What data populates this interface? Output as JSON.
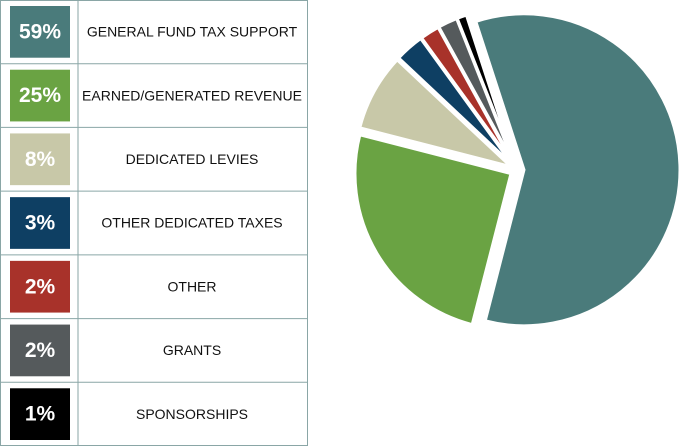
{
  "chart_data": {
    "type": "pie",
    "categories": [
      "GENERAL FUND TAX SUPPORT",
      "EARNED/GENERATED REVENUE",
      "DEDICATED LEVIES",
      "OTHER DEDICATED TAXES",
      "OTHER",
      "GRANTS",
      "SPONSORSHIPS"
    ],
    "values": [
      59,
      25,
      8,
      3,
      2,
      2,
      1
    ],
    "value_labels": [
      "59%",
      "25%",
      "8%",
      "3%",
      "2%",
      "2%",
      "1%"
    ],
    "colors": [
      "#4a7b7b",
      "#6aa343",
      "#c8c8a8",
      "#0e3f63",
      "#a8322a",
      "#555a5c",
      "#000000"
    ]
  }
}
